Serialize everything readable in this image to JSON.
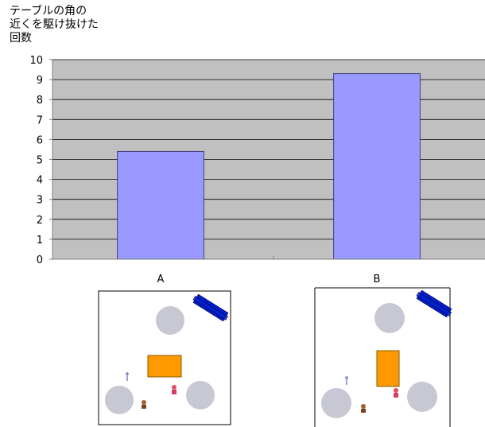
{
  "chart_data": {
    "type": "bar",
    "title": "",
    "ylabel": [
      "テーブルの角の",
      "近くを駆け抜けた",
      "回数"
    ],
    "xlabel": "",
    "categories": [
      "A",
      "B"
    ],
    "values": [
      5.4,
      9.3
    ],
    "ylim": [
      0,
      10
    ],
    "yticks": [
      0,
      1,
      2,
      3,
      4,
      5,
      6,
      7,
      8,
      9,
      10
    ],
    "grid": true,
    "plot_background": "#c0c0c0",
    "bar_color": "#9999ff",
    "bar_edge": "#3f3f7f"
  },
  "diagrams": [
    {
      "label": "A",
      "table": "wide"
    },
    {
      "label": "B",
      "table": "tall"
    }
  ],
  "colors": {
    "table": "#ff9900",
    "circle": "#c7c8d3",
    "block": "#0022cc"
  }
}
